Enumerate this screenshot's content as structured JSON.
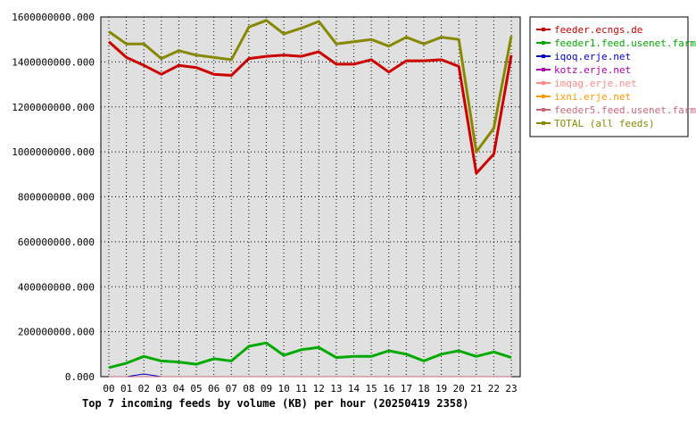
{
  "chart_data": {
    "type": "line",
    "title": "Top 7 incoming feeds by volume (KB) per hour (20250419 2358)",
    "xlabel": "",
    "ylabel": "",
    "x": [
      "00",
      "01",
      "02",
      "03",
      "04",
      "05",
      "06",
      "07",
      "08",
      "09",
      "10",
      "11",
      "12",
      "13",
      "14",
      "15",
      "16",
      "17",
      "18",
      "19",
      "20",
      "21",
      "22",
      "23"
    ],
    "ylim": [
      0,
      1600000000
    ],
    "yticks": [
      0,
      200000000,
      400000000,
      600000000,
      800000000,
      1000000000,
      1200000000,
      1400000000,
      1600000000
    ],
    "ytick_labels": [
      "0.000",
      "200000000.000",
      "400000000.000",
      "600000000.000",
      "800000000.000",
      "1000000000.000",
      "1200000000.000",
      "1400000000.000",
      "1600000000.000"
    ],
    "grid": true,
    "legend_position": "right",
    "plot_background": "#e0e0e0",
    "series": [
      {
        "name": "feeder.ecngs.de",
        "color": "#cc0000",
        "width": 3,
        "values": [
          1490000000,
          1420000000,
          1385000000,
          1345000000,
          1385000000,
          1375000000,
          1345000000,
          1340000000,
          1415000000,
          1425000000,
          1430000000,
          1425000000,
          1445000000,
          1390000000,
          1390000000,
          1410000000,
          1355000000,
          1405000000,
          1405000000,
          1410000000,
          1380000000,
          905000000,
          990000000,
          1430000000
        ]
      },
      {
        "name": "feeder1.feed.usenet.farm",
        "color": "#00aa00",
        "width": 3,
        "values": [
          40000000,
          60000000,
          90000000,
          70000000,
          65000000,
          55000000,
          80000000,
          70000000,
          135000000,
          150000000,
          95000000,
          120000000,
          130000000,
          85000000,
          90000000,
          90000000,
          115000000,
          100000000,
          70000000,
          100000000,
          115000000,
          90000000,
          110000000,
          85000000
        ]
      },
      {
        "name": "iqoq.erje.net",
        "color": "#0000cc",
        "width": 1,
        "values": [
          0,
          0,
          12000000,
          0,
          0,
          0,
          0,
          0,
          0,
          0,
          0,
          0,
          0,
          0,
          0,
          0,
          0,
          0,
          0,
          0,
          0,
          0,
          0,
          0
        ]
      },
      {
        "name": "kotz.erje.net",
        "color": "#aa00aa",
        "width": 1,
        "values": [
          0,
          0,
          0,
          0,
          0,
          0,
          0,
          0,
          0,
          0,
          0,
          0,
          0,
          0,
          0,
          0,
          0,
          0,
          0,
          0,
          0,
          0,
          0,
          0
        ]
      },
      {
        "name": "imqag.erje.net",
        "color": "#ff8888",
        "width": 1,
        "values": [
          0,
          0,
          0,
          0,
          0,
          0,
          0,
          0,
          0,
          0,
          0,
          0,
          0,
          0,
          0,
          0,
          0,
          0,
          0,
          0,
          0,
          0,
          0,
          0
        ]
      },
      {
        "name": "ixni.erje.net",
        "color": "#ff9900",
        "width": 1,
        "values": [
          0,
          0,
          0,
          0,
          0,
          0,
          0,
          0,
          0,
          0,
          0,
          0,
          0,
          0,
          0,
          0,
          0,
          0,
          0,
          0,
          0,
          0,
          0,
          0
        ]
      },
      {
        "name": "feeder5.feed.usenet.farm",
        "color": "#cc6677",
        "width": 1,
        "values": [
          0,
          0,
          0,
          0,
          0,
          0,
          0,
          0,
          0,
          0,
          0,
          0,
          0,
          0,
          0,
          0,
          0,
          0,
          0,
          0,
          0,
          0,
          0,
          0
        ]
      },
      {
        "name": "TOTAL (all feeds)",
        "color": "#888800",
        "width": 3,
        "values": [
          1535000000,
          1480000000,
          1480000000,
          1415000000,
          1450000000,
          1430000000,
          1420000000,
          1410000000,
          1555000000,
          1585000000,
          1525000000,
          1550000000,
          1580000000,
          1480000000,
          1490000000,
          1500000000,
          1470000000,
          1510000000,
          1480000000,
          1510000000,
          1500000000,
          1000000000,
          1105000000,
          1515000000
        ]
      }
    ]
  }
}
